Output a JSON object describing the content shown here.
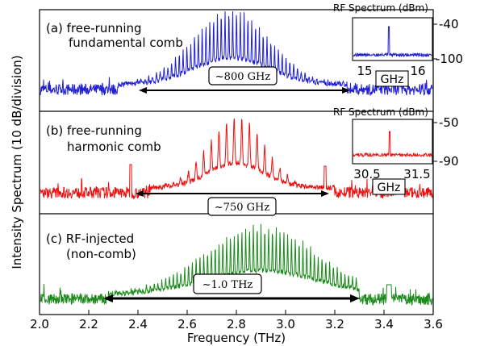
{
  "chart_data": {
    "type": "line",
    "xlabel": "Frequency (THz)",
    "ylabel": "Intensity Spectrum (10 dB/division)",
    "xlim": [
      2.0,
      3.6
    ],
    "x_ticks": [
      "2.0",
      "2.2",
      "2.4",
      "2.6",
      "2.8",
      "3.0",
      "3.2",
      "3.4",
      "3.6"
    ],
    "grid": false,
    "panels": [
      {
        "label_line1": "(a) free-running",
        "label_line2": "fundamental comb",
        "color": "#1f1fd6",
        "span_label": "~800 GHz",
        "span_thz": [
          2.45,
          3.25
        ],
        "comb_range_thz": [
          2.32,
          3.25
        ],
        "peak_center_thz": 2.78,
        "line_spacing_ghz": 15.5,
        "inset": {
          "title": "RF Spectrum (dBm)",
          "xlabel": "GHz",
          "x_ticks": [
            "15",
            "16"
          ],
          "y_ticks": [
            "-40",
            "-100"
          ],
          "peak_ghz": 15.5
        }
      },
      {
        "label_line1": "(b) free-running",
        "label_line2": "harmonic comb",
        "color": "#ee1111",
        "span_label": "~750 GHz",
        "span_thz": [
          2.43,
          3.18
        ],
        "comb_range_thz": [
          2.45,
          3.2
        ],
        "peak_center_thz": 2.8,
        "line_spacing_ghz": 31,
        "inset": {
          "title": "RF Spectrum (dBm)",
          "xlabel": "GHz",
          "x_ticks": [
            "30.5",
            "31.5"
          ],
          "y_ticks": [
            "-50",
            "-90"
          ],
          "peak_ghz": 31.0
        }
      },
      {
        "label_line1": "(c) RF-injected",
        "label_line2": "(non-comb)",
        "color": "#1a8a1a",
        "span_label": "~1.0 THz",
        "span_thz": [
          2.29,
          3.29
        ],
        "comb_range_thz": [
          2.28,
          3.3
        ],
        "peak_center_thz": 2.9,
        "line_spacing_ghz": 15.5
      }
    ]
  }
}
